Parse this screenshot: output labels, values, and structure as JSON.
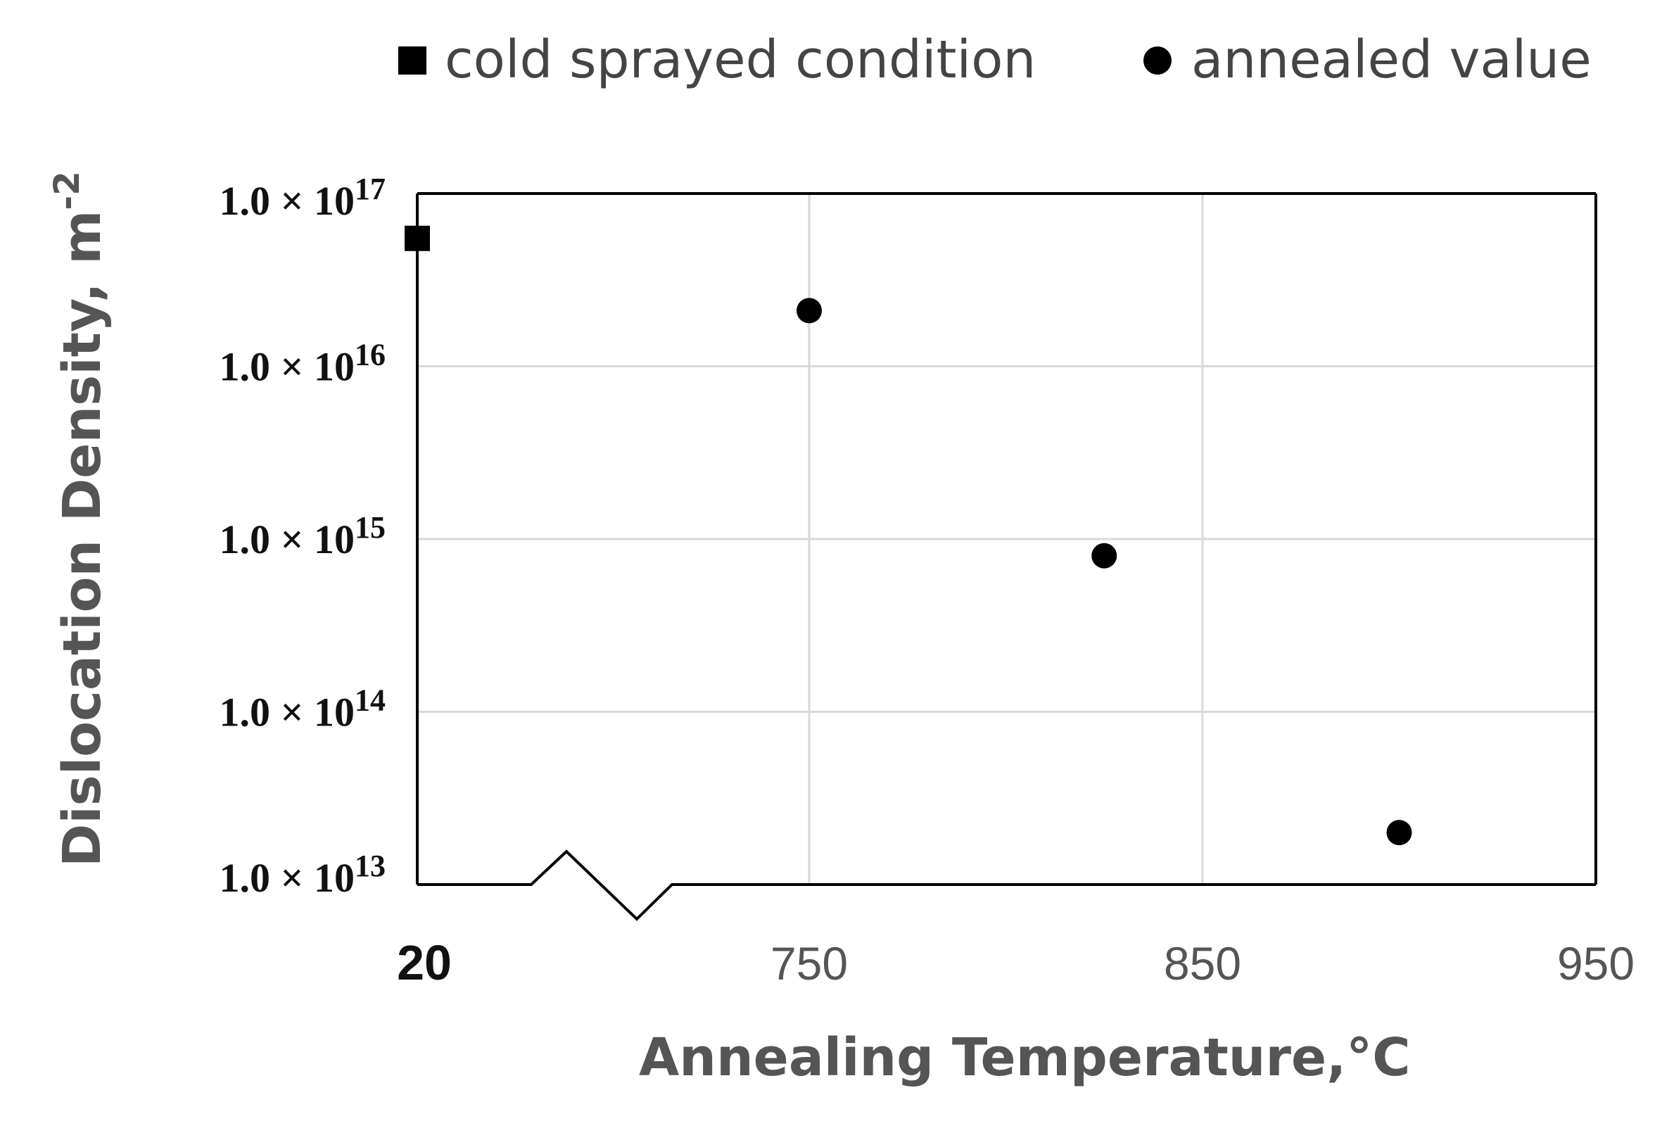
{
  "chart_data": {
    "type": "scatter",
    "title": "",
    "xlabel": "Annealing Temperature,°C",
    "xlabel_text": "Annealing Temperature,",
    "xlabel_unit": "°C",
    "ylabel": "Dislocation Density, m-2",
    "ylabel_text": "Dislocation Density, m",
    "ylabel_exp": "-2",
    "yscale": "log",
    "ylim": [
      10000000000000.0,
      1e+17
    ],
    "xlim": [
      20,
      950
    ],
    "x_axis_break": {
      "from": 20,
      "to": 750
    },
    "grid": true,
    "legend_position": "top",
    "y_ticks": [
      {
        "value": 1e+17,
        "mantissa": "1.0 × 10",
        "exp": "17"
      },
      {
        "value": 1e+16,
        "mantissa": "1.0 × 10",
        "exp": "16"
      },
      {
        "value": 1000000000000000.0,
        "mantissa": "1.0 × 10",
        "exp": "15"
      },
      {
        "value": 100000000000000.0,
        "mantissa": "1.0 × 10",
        "exp": "14"
      },
      {
        "value": 10000000000000.0,
        "mantissa": "1.0 × 10",
        "exp": "13"
      }
    ],
    "x_ticks": [
      {
        "value": 20,
        "label": "20"
      },
      {
        "value": 750,
        "label": "750"
      },
      {
        "value": 850,
        "label": "850"
      },
      {
        "value": 950,
        "label": "950"
      }
    ],
    "series": [
      {
        "name": "cold sprayed condition",
        "marker": "square",
        "color": "#000000",
        "points": [
          {
            "x": 20,
            "y": 5.5e+16
          }
        ]
      },
      {
        "name": "annealed value",
        "marker": "circle",
        "color": "#000000",
        "points": [
          {
            "x": 750,
            "y": 2.1e+16
          },
          {
            "x": 825,
            "y": 800000000000000.0
          },
          {
            "x": 900,
            "y": 20000000000000.0
          }
        ]
      }
    ]
  },
  "legend": {
    "items": [
      {
        "label": "cold sprayed condition",
        "marker": "square"
      },
      {
        "label": "annealed value",
        "marker": "circle"
      }
    ]
  }
}
